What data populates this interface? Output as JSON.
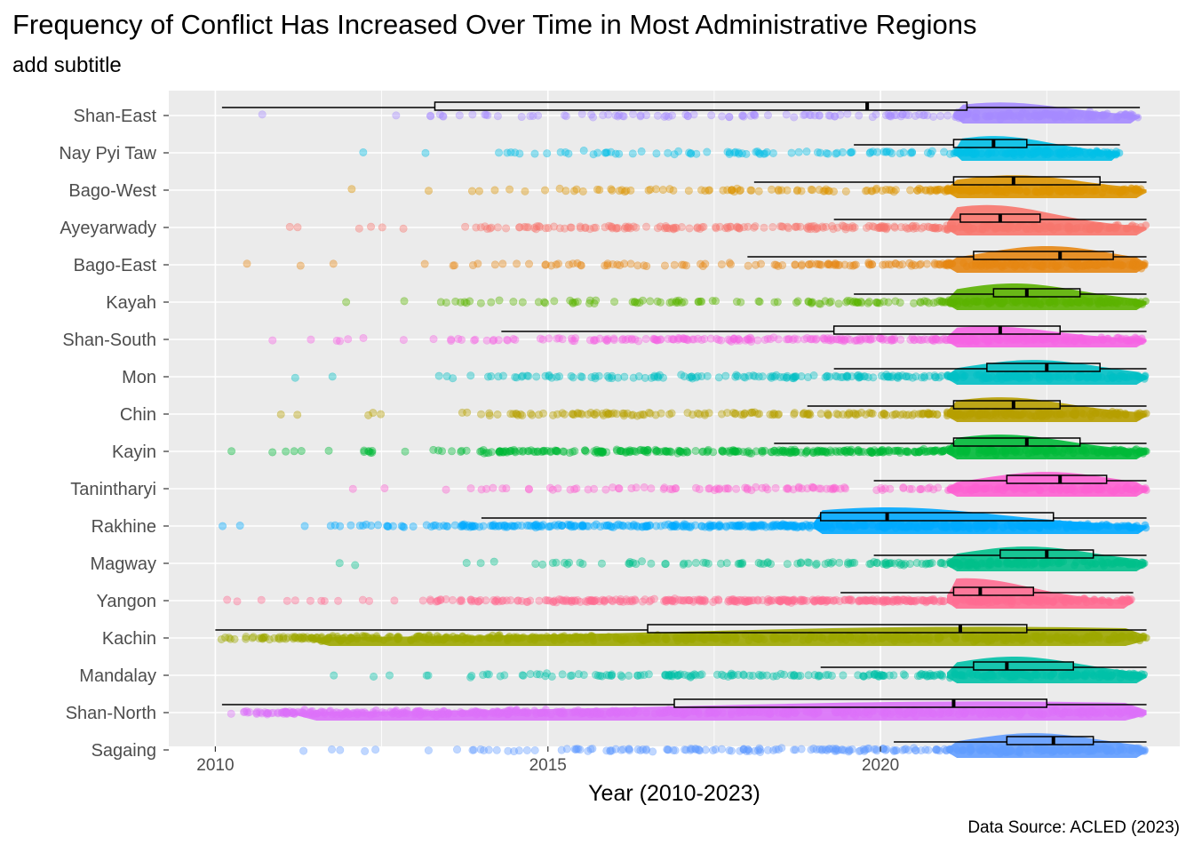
{
  "chart_data": {
    "type": "scatter",
    "variant": "jittered points with half-violin and horizontal boxplot per region",
    "title": "Frequency of Conflict Has Increased Over Time in Most Administrative Regions",
    "subtitle": "add subtitle",
    "caption": "Data Source: ACLED (2023)",
    "xlabel": "Year (2010-2023)",
    "ylabel": "",
    "xlim": [
      2009.3,
      2024.5
    ],
    "x_ticks": [
      2010,
      2015,
      2020
    ],
    "x_tick_labels": [
      "2010",
      "2015",
      "2020"
    ],
    "grid": true,
    "legend": "none",
    "series": [
      {
        "name": "Shan-East",
        "color": "#a58aff",
        "min": 2010.1,
        "q1": 2013.3,
        "median": 2019.8,
        "q3": 2021.3,
        "max": 2023.9,
        "sparse_start": 2010.1,
        "dense_start": 2021.1,
        "density": 0.6,
        "peak": 2021.8,
        "violin_h": 0.35
      },
      {
        "name": "Nay Pyi Taw",
        "color": "#00bfe7",
        "min": 2019.6,
        "q1": 2021.1,
        "median": 2021.7,
        "q3": 2022.2,
        "max": 2023.6,
        "sparse_start": 2011.4,
        "dense_start": 2021.1,
        "density": 0.6,
        "peak": 2021.7,
        "violin_h": 0.45
      },
      {
        "name": "Bago-West",
        "color": "#dc9300",
        "min": 2018.1,
        "q1": 2021.1,
        "median": 2022.0,
        "q3": 2023.3,
        "max": 2024.0,
        "sparse_start": 2011.4,
        "dense_start": 2021.0,
        "density": 0.7,
        "peak": 2022.0,
        "violin_h": 0.4
      },
      {
        "name": "Ayeyarwady",
        "color": "#f8766d",
        "min": 2019.3,
        "q1": 2021.2,
        "median": 2021.8,
        "q3": 2022.4,
        "max": 2024.0,
        "sparse_start": 2010.8,
        "dense_start": 2021.0,
        "density": 1.2,
        "peak": 2021.6,
        "violin_h": 0.6
      },
      {
        "name": "Bago-East",
        "color": "#e68613",
        "min": 2018.0,
        "q1": 2021.4,
        "median": 2022.7,
        "q3": 2023.5,
        "max": 2024.0,
        "sparse_start": 2010.0,
        "dense_start": 2021.0,
        "density": 0.7,
        "peak": 2022.5,
        "violin_h": 0.5
      },
      {
        "name": "Kayah",
        "color": "#5bb300",
        "min": 2019.6,
        "q1": 2021.7,
        "median": 2022.2,
        "q3": 2023.0,
        "max": 2024.0,
        "sparse_start": 2010.3,
        "dense_start": 2021.0,
        "density": 0.7,
        "peak": 2022.0,
        "violin_h": 0.5
      },
      {
        "name": "Shan-South",
        "color": "#f564e3",
        "min": 2014.3,
        "q1": 2019.3,
        "median": 2021.8,
        "q3": 2022.7,
        "max": 2024.0,
        "sparse_start": 2010.1,
        "dense_start": 2021.0,
        "density": 1.2,
        "peak": 2021.6,
        "violin_h": 0.35
      },
      {
        "name": "Mon",
        "color": "#00bfc4",
        "min": 2019.3,
        "q1": 2021.6,
        "median": 2022.5,
        "q3": 2023.3,
        "max": 2024.0,
        "sparse_start": 2010.0,
        "dense_start": 2021.0,
        "density": 0.9,
        "peak": 2022.3,
        "violin_h": 0.45
      },
      {
        "name": "Chin",
        "color": "#b79f00",
        "min": 2018.9,
        "q1": 2021.1,
        "median": 2022.0,
        "q3": 2022.7,
        "max": 2024.0,
        "sparse_start": 2010.3,
        "dense_start": 2021.0,
        "density": 1.0,
        "peak": 2021.8,
        "violin_h": 0.45
      },
      {
        "name": "Kayin",
        "color": "#00ba38",
        "min": 2018.4,
        "q1": 2021.1,
        "median": 2022.2,
        "q3": 2023.0,
        "max": 2024.0,
        "sparse_start": 2010.0,
        "dense_start": 2021.0,
        "density": 2.0,
        "peak": 2021.8,
        "violin_h": 0.45
      },
      {
        "name": "Tanintharyi",
        "color": "#fd61d1",
        "min": 2019.9,
        "q1": 2021.9,
        "median": 2022.7,
        "q3": 2023.4,
        "max": 2024.0,
        "sparse_start": 2010.1,
        "dense_start": 2021.0,
        "density": 0.6,
        "peak": 2022.5,
        "violin_h": 0.45
      },
      {
        "name": "Rakhine",
        "color": "#00a9ff",
        "min": 2014.0,
        "q1": 2019.1,
        "median": 2020.1,
        "q3": 2022.6,
        "max": 2024.0,
        "sparse_start": 2010.1,
        "dense_start": 2019.0,
        "density": 2.0,
        "peak": 2020.1,
        "violin_h": 0.5
      },
      {
        "name": "Magway",
        "color": "#00c08b",
        "min": 2019.9,
        "q1": 2021.8,
        "median": 2022.5,
        "q3": 2023.2,
        "max": 2024.0,
        "sparse_start": 2011.5,
        "dense_start": 2021.0,
        "density": 0.7,
        "peak": 2022.2,
        "violin_h": 0.45
      },
      {
        "name": "Yangon",
        "color": "#ff6c91",
        "min": 2019.4,
        "q1": 2021.1,
        "median": 2021.5,
        "q3": 2022.3,
        "max": 2023.8,
        "sparse_start": 2010.0,
        "dense_start": 2021.0,
        "density": 2.0,
        "peak": 2021.3,
        "violin_h": 0.6
      },
      {
        "name": "Kachin",
        "color": "#9da700",
        "min": 2010.0,
        "q1": 2016.5,
        "median": 2021.2,
        "q3": 2022.2,
        "max": 2024.0,
        "sparse_start": 2010.0,
        "dense_start": 2011.4,
        "density": 2.0,
        "peak": 2021.5,
        "violin_h": 0.3
      },
      {
        "name": "Mandalay",
        "color": "#00c1a7",
        "min": 2019.1,
        "q1": 2021.4,
        "median": 2021.9,
        "q3": 2022.9,
        "max": 2024.0,
        "sparse_start": 2010.9,
        "dense_start": 2021.0,
        "density": 1.0,
        "peak": 2022.0,
        "violin_h": 0.5
      },
      {
        "name": "Shan-North",
        "color": "#dc71fa",
        "min": 2010.1,
        "q1": 2016.9,
        "median": 2021.1,
        "q3": 2022.5,
        "max": 2024.0,
        "sparse_start": 2010.1,
        "dense_start": 2011.2,
        "density": 2.5,
        "peak": 2021.5,
        "violin_h": 0.3
      },
      {
        "name": "Sagaing",
        "color": "#619cff",
        "min": 2020.2,
        "q1": 2021.9,
        "median": 2022.6,
        "q3": 2023.2,
        "max": 2024.0,
        "sparse_start": 2010.6,
        "dense_start": 2021.0,
        "density": 1.0,
        "peak": 2022.3,
        "violin_h": 0.45
      }
    ]
  }
}
